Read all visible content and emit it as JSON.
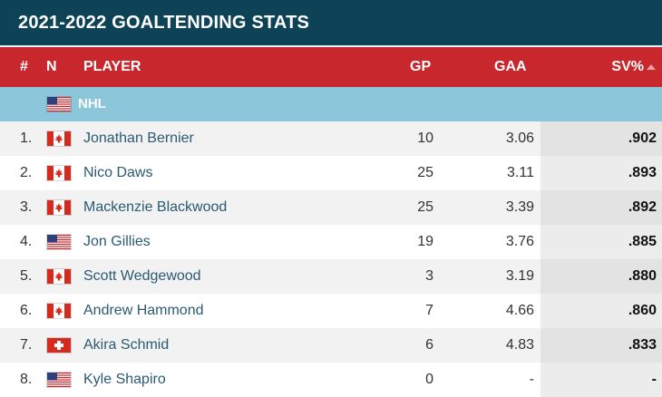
{
  "title": "2021-2022 GOALTENDING STATS",
  "columns": {
    "rank": "#",
    "nationality": "N",
    "player": "PLAYER",
    "gp": "GP",
    "gaa": "GAA",
    "sv_pct": "SV%"
  },
  "league": {
    "name": "NHL",
    "flag_icon": "usa-flag-icon"
  },
  "rows": [
    {
      "rank": "1.",
      "flag": "canada",
      "player": "Jonathan Bernier",
      "gp": "10",
      "gaa": "3.06",
      "sv_pct": ".902"
    },
    {
      "rank": "2.",
      "flag": "canada",
      "player": "Nico Daws",
      "gp": "25",
      "gaa": "3.11",
      "sv_pct": ".893"
    },
    {
      "rank": "3.",
      "flag": "canada",
      "player": "Mackenzie Blackwood",
      "gp": "25",
      "gaa": "3.39",
      "sv_pct": ".892"
    },
    {
      "rank": "4.",
      "flag": "usa",
      "player": "Jon Gillies",
      "gp": "19",
      "gaa": "3.76",
      "sv_pct": ".885"
    },
    {
      "rank": "5.",
      "flag": "canada",
      "player": "Scott Wedgewood",
      "gp": "3",
      "gaa": "3.19",
      "sv_pct": ".880"
    },
    {
      "rank": "6.",
      "flag": "canada",
      "player": "Andrew Hammond",
      "gp": "7",
      "gaa": "4.66",
      "sv_pct": ".860"
    },
    {
      "rank": "7.",
      "flag": "switzerland",
      "player": "Akira Schmid",
      "gp": "6",
      "gaa": "4.83",
      "sv_pct": ".833"
    },
    {
      "rank": "8.",
      "flag": "usa",
      "player": "Kyle Shapiro",
      "gp": "0",
      "gaa": "-",
      "sv_pct": "-"
    }
  ],
  "colors": {
    "title_bg": "#0d4257",
    "header_bg": "#c8282d",
    "league_bg": "#8cc6da",
    "player_link": "#2b5a73"
  }
}
